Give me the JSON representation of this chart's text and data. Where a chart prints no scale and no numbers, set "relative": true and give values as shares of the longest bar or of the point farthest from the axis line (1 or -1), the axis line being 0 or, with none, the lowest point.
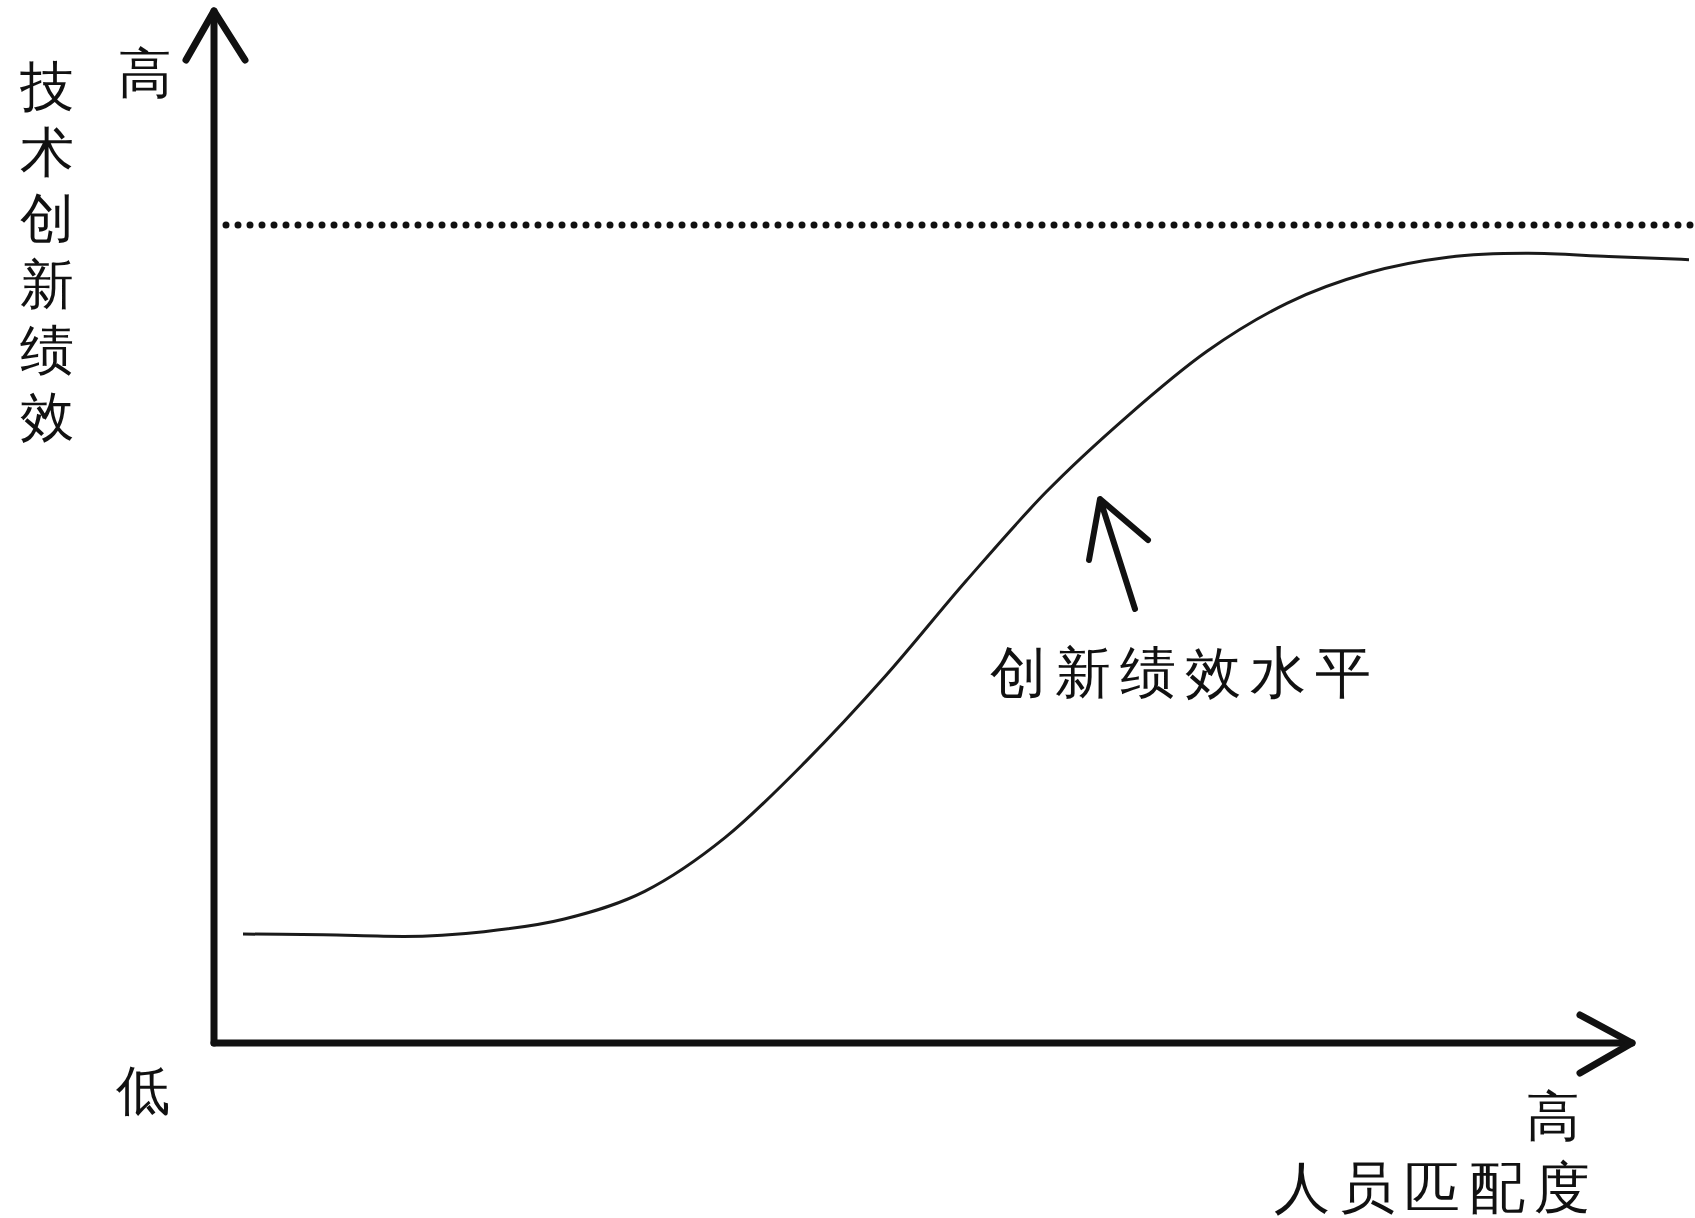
{
  "chart_data": {
    "type": "line",
    "relative": true,
    "xlabel": "人员匹配度",
    "ylabel": "技术创新绩效",
    "categories": [
      null,
      null,
      null,
      null,
      null,
      null,
      null,
      null,
      null,
      null,
      null,
      null,
      null,
      null,
      null,
      null,
      null,
      null,
      null
    ],
    "series": [
      {
        "color": "#1a1a1a",
        "values": [
          0.138,
          0.137,
          0.135,
          0.141,
          0.157,
          0.192,
          0.26,
          0.356,
          0.465,
          0.585,
          0.698,
          0.793,
          0.876,
          0.937,
          0.975,
          0.995,
          1,
          0.996,
          0.992
        ]
      }
    ],
    "ref_lines": [
      {
        "axis": "y",
        "value": 1.036,
        "color": "#111111",
        "line_style": "dotted"
      }
    ],
    "annotations": [
      "高",
      "低",
      "高",
      "创新绩效水平"
    ],
    "marker": "none",
    "line_style": "solid",
    "legend": false
  }
}
